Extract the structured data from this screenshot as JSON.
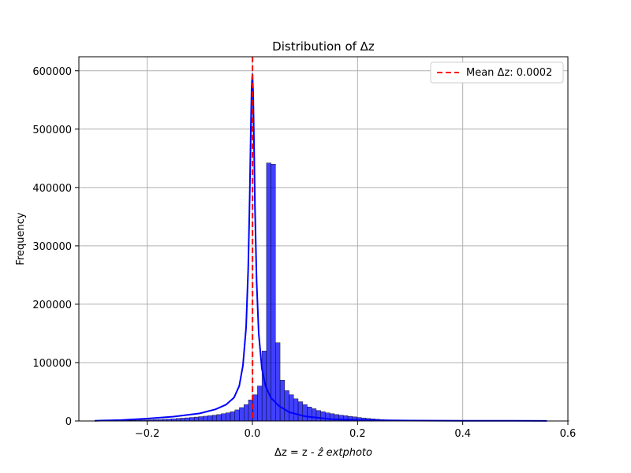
{
  "chart_data": {
    "type": "bar",
    "title": "Distribution of Δz",
    "xlabel_main": "Δz = z - ",
    "xlabel_zhat": "ẑ",
    "xlabel_tail": " extphoto",
    "ylabel": "Frequency",
    "xlim": [
      -0.33,
      0.6
    ],
    "ylim": [
      0,
      624000
    ],
    "xticks": [
      -0.2,
      0.0,
      0.2,
      0.4,
      0.6
    ],
    "xtick_labels": [
      "−0.2",
      "0.0",
      "0.2",
      "0.4",
      "0.6"
    ],
    "yticks": [
      0,
      100000,
      200000,
      300000,
      400000,
      500000,
      600000
    ],
    "ytick_labels": [
      "0",
      "100000",
      "200000",
      "300000",
      "400000",
      "500000",
      "600000"
    ],
    "grid": true,
    "legend_position": "top-right",
    "mean_line": {
      "label": "Mean Δz: 0.0002",
      "x": 0.0002,
      "color": "#ff0000"
    },
    "bar_color": "#0000ff",
    "kde_color": "#0000ff",
    "bins": {
      "edges_start": -0.3,
      "width": 0.0086,
      "counts": [
        200,
        300,
        400,
        500,
        600,
        700,
        900,
        1000,
        1200,
        1400,
        1600,
        1800,
        2000,
        2300,
        2600,
        3000,
        3400,
        3800,
        4300,
        4800,
        5400,
        6000,
        6700,
        7400,
        8200,
        9000,
        10000,
        11000,
        12500,
        14000,
        16000,
        19000,
        23000,
        28000,
        36000,
        45000,
        60000,
        120000,
        442000,
        440000,
        134000,
        70000,
        52000,
        45000,
        38000,
        33000,
        28000,
        24000,
        21000,
        18000,
        16000,
        14000,
        12500,
        11000,
        10000,
        9000,
        8000,
        7000,
        6000,
        5200,
        4400,
        3700,
        3000,
        2500,
        2000,
        1700,
        1400,
        1200,
        1000,
        900,
        800,
        700,
        650,
        600,
        550,
        500,
        450,
        420,
        400,
        380,
        360,
        340,
        320,
        300,
        280,
        260,
        250,
        240,
        230,
        220,
        210,
        200,
        190,
        180,
        170,
        160,
        150,
        140,
        130,
        120,
        110,
        100,
        95,
        90,
        85
      ]
    },
    "kde": {
      "x": [
        -0.3,
        -0.25,
        -0.2,
        -0.15,
        -0.1,
        -0.07,
        -0.05,
        -0.035,
        -0.025,
        -0.018,
        -0.012,
        -0.008,
        -0.005,
        -0.003,
        -0.0015,
        0.0,
        0.0015,
        0.003,
        0.005,
        0.008,
        0.012,
        0.018,
        0.025,
        0.035,
        0.05,
        0.07,
        0.1,
        0.15,
        0.2,
        0.3,
        0.4,
        0.5,
        0.56
      ],
      "y": [
        400,
        1500,
        4000,
        7500,
        13000,
        20000,
        28000,
        40000,
        60000,
        95000,
        160000,
        260000,
        390000,
        500000,
        570000,
        595000,
        560000,
        480000,
        360000,
        240000,
        150000,
        90000,
        60000,
        40000,
        26000,
        15000,
        8000,
        3000,
        1500,
        700,
        400,
        300,
        200
      ]
    }
  }
}
